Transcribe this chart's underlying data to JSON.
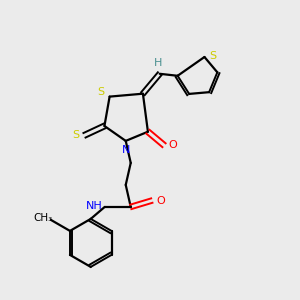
{
  "bg_color": "#ebebeb",
  "atom_colors": {
    "S": "#cccc00",
    "N": "#0000ff",
    "O": "#ff0000",
    "C": "#000000",
    "H": "#4a9090"
  },
  "bond_color": "#000000"
}
